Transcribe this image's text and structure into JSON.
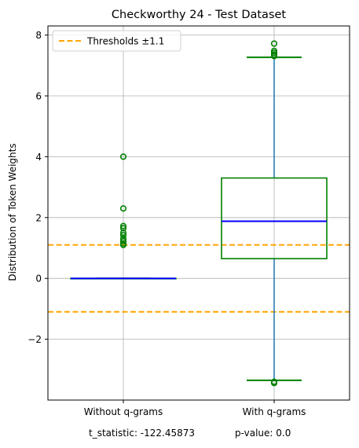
{
  "chart_data": {
    "type": "box",
    "title": "Checkworthy 24 - Test Dataset",
    "xlabel": "",
    "ylabel": "Distribution of Token Weights",
    "ylim": [
      -4.0,
      8.3
    ],
    "yticks": [
      -2,
      0,
      2,
      4,
      6,
      8
    ],
    "ytick_labels": [
      "−2",
      "0",
      "2",
      "4",
      "6",
      "8"
    ],
    "categories": [
      "Without q-grams",
      "With q-grams"
    ],
    "grid": true,
    "legend": {
      "position": "top-left",
      "entries": [
        "Thresholds ±1.1"
      ]
    },
    "thresholds": [
      1.1,
      -1.1
    ],
    "boxes": [
      {
        "name": "Without q-grams",
        "whisker_low": 0.0,
        "q1": 0.0,
        "median": 0.0,
        "q3": 0.0,
        "whisker_high": 0.0,
        "outliers": [
          4.0,
          2.3,
          1.72,
          1.65,
          1.5,
          1.42,
          1.3,
          1.22,
          1.15,
          1.1
        ]
      },
      {
        "name": "With q-grams",
        "whisker_low": -3.35,
        "q1": 0.65,
        "median": 1.88,
        "q3": 3.3,
        "whisker_high": 7.27,
        "outliers": [
          7.72,
          7.48,
          7.42,
          7.36,
          7.31,
          -3.4,
          -3.44
        ]
      }
    ]
  },
  "annotation": {
    "t_statistic": "t_statistic: -122.45873",
    "p_value": "p-value: 0.0"
  },
  "colors": {
    "box": "#008000",
    "median": "#0000ff",
    "whisker": "#1f77b4",
    "threshold": "#ffa500",
    "grid": "#b0b0b0"
  }
}
